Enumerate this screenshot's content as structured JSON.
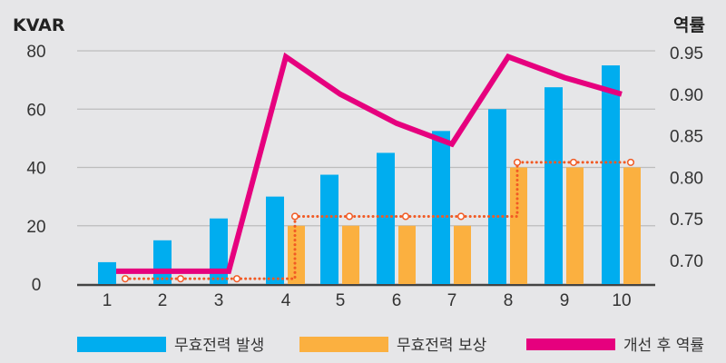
{
  "chart_data": {
    "type": "bar",
    "categories": [
      "1",
      "2",
      "3",
      "4",
      "5",
      "6",
      "7",
      "8",
      "9",
      "10"
    ],
    "left_axis": {
      "label": "KVAR",
      "ticks": [
        "0",
        "20",
        "40",
        "60",
        "80"
      ],
      "ylim": [
        0,
        80
      ]
    },
    "right_axis": {
      "label": "역률",
      "ticks": [
        "0.70",
        "0.75",
        "0.80",
        "0.85",
        "0.90",
        "0.95"
      ],
      "ylim": [
        0.675,
        0.95
      ]
    },
    "series": [
      {
        "name": "무효전력 발생",
        "type": "bar",
        "axis": "left",
        "color": "#00adef",
        "values": [
          7.5,
          15,
          22.5,
          30,
          37.5,
          45,
          52.5,
          60,
          67.5,
          75
        ]
      },
      {
        "name": "무효전력 보상",
        "type": "bar",
        "axis": "left",
        "color": "#fbb040",
        "values": [
          0,
          0,
          0,
          20,
          20,
          20,
          20,
          40,
          40,
          40
        ]
      },
      {
        "name": "개선 후 역률",
        "type": "line",
        "axis": "right",
        "color": "#e6007e",
        "values": [
          0.687,
          0.687,
          0.687,
          0.945,
          0.9,
          0.865,
          0.84,
          0.945,
          0.92,
          0.9
        ]
      },
      {
        "name": "",
        "type": "step-dotted",
        "axis": "right",
        "color": "#f15a24",
        "values": [
          0.678,
          0.678,
          0.678,
          0.753,
          0.753,
          0.753,
          0.753,
          0.818,
          0.818,
          0.818
        ]
      }
    ],
    "grid": true,
    "legend_position": "bottom"
  }
}
